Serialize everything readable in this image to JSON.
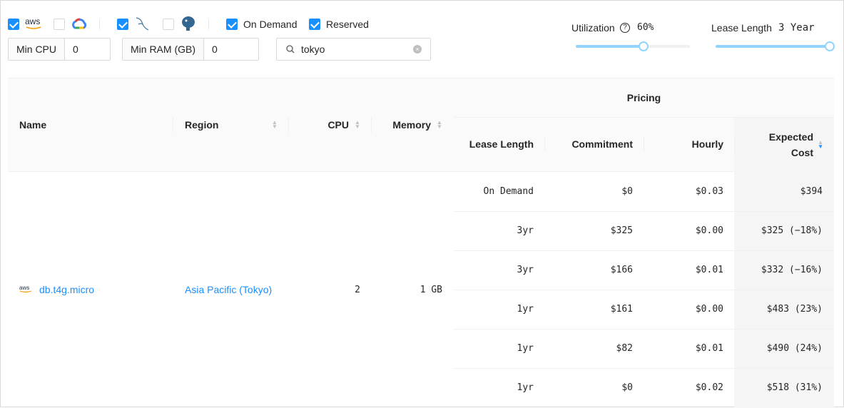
{
  "filters": {
    "providers": [
      {
        "name": "aws",
        "checked": true
      },
      {
        "name": "gcp",
        "checked": false
      }
    ],
    "engines": [
      {
        "name": "mysql",
        "checked": true
      },
      {
        "name": "postgresql",
        "checked": false
      }
    ],
    "pricing_types": [
      {
        "label": "On Demand",
        "checked": true
      },
      {
        "label": "Reserved",
        "checked": true
      }
    ],
    "aws_logo_text": "aws",
    "min_cpu": {
      "label": "Min CPU",
      "value": "0"
    },
    "min_ram": {
      "label": "Min RAM (GB)",
      "value": "0"
    },
    "search": {
      "value": "tokyo"
    }
  },
  "sliders": {
    "utilization": {
      "label": "Utilization",
      "value_text": "60%",
      "fraction": 0.6
    },
    "lease_length": {
      "label": "Lease Length",
      "value_text": "3 Year",
      "fraction": 1.0
    }
  },
  "table": {
    "headers": {
      "name": "Name",
      "region": "Region",
      "cpu": "CPU",
      "memory": "Memory",
      "pricing": "Pricing",
      "lease_length": "Lease Length",
      "commitment": "Commitment",
      "hourly": "Hourly",
      "expected_cost_1": "Expected",
      "expected_cost_2": "Cost"
    },
    "instance": {
      "name": "db.t4g.micro",
      "region": "Asia Pacific (Tokyo)",
      "cpu": "2",
      "memory": "1 GB",
      "provider_logo": "aws"
    },
    "rows": [
      {
        "lease": "On Demand",
        "commitment": "$0",
        "hourly": "$0.03",
        "expected": "$394"
      },
      {
        "lease": "3yr",
        "commitment": "$325",
        "hourly": "$0.00",
        "expected": "$325 (−18%)"
      },
      {
        "lease": "3yr",
        "commitment": "$166",
        "hourly": "$0.01",
        "expected": "$332 (−16%)"
      },
      {
        "lease": "1yr",
        "commitment": "$161",
        "hourly": "$0.00",
        "expected": "$483 (23%)"
      },
      {
        "lease": "1yr",
        "commitment": "$82",
        "hourly": "$0.01",
        "expected": "$490 (24%)"
      },
      {
        "lease": "1yr",
        "commitment": "$0",
        "hourly": "$0.02",
        "expected": "$518 (31%)"
      }
    ]
  }
}
